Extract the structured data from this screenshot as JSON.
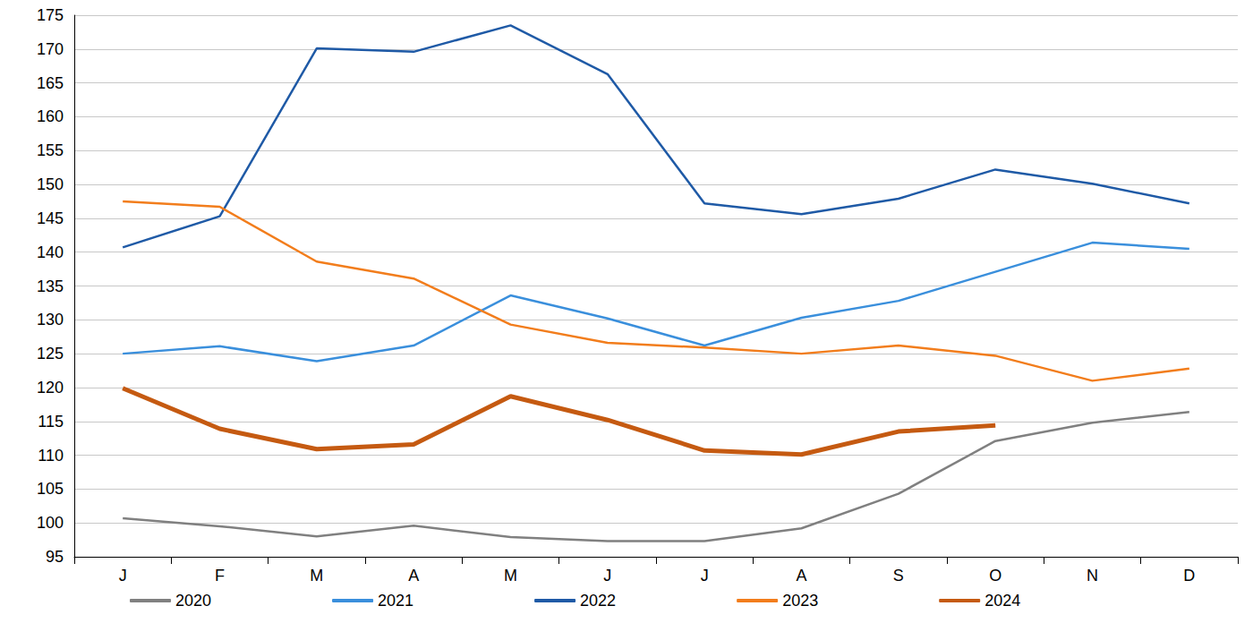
{
  "chart_data": {
    "type": "line",
    "categories": [
      "J",
      "F",
      "M",
      "A",
      "M",
      "J",
      "J",
      "A",
      "S",
      "O",
      "N",
      "D"
    ],
    "series": [
      {
        "name": "2020",
        "color": "#808080",
        "line_style": "solid",
        "values": [
          100.7,
          99.5,
          98.0,
          99.6,
          97.9,
          97.3,
          97.3,
          99.2,
          104.3,
          112.1,
          114.8,
          116.4
        ]
      },
      {
        "name": "2021",
        "color": "#3a8fdc",
        "line_style": "solid",
        "values": [
          125.0,
          126.1,
          123.9,
          126.2,
          133.6,
          130.2,
          126.2,
          130.3,
          132.8,
          137.1,
          141.4,
          140.5
        ]
      },
      {
        "name": "2022",
        "color": "#1f5aa6",
        "line_style": "solid",
        "values": [
          140.7,
          145.3,
          170.1,
          169.6,
          173.5,
          166.3,
          147.2,
          145.6,
          147.9,
          152.2,
          150.1,
          147.2
        ]
      },
      {
        "name": "2023",
        "color": "#f27d1c",
        "line_style": "solid",
        "values": [
          147.5,
          146.7,
          138.6,
          136.1,
          129.3,
          126.6,
          125.9,
          125.0,
          126.2,
          124.7,
          121.0,
          122.8
        ]
      },
      {
        "name": "2024",
        "color": "#c55a11",
        "line_style": "bold",
        "values": [
          119.9,
          113.9,
          110.9,
          111.6,
          118.7,
          115.2,
          110.7,
          110.1,
          113.5,
          114.4,
          null,
          null
        ]
      }
    ],
    "ylim": [
      95,
      175
    ],
    "yticks": [
      95,
      100,
      105,
      110,
      115,
      120,
      125,
      130,
      135,
      140,
      145,
      150,
      155,
      160,
      165,
      170,
      175
    ],
    "grid": true,
    "legend": "bottom"
  }
}
